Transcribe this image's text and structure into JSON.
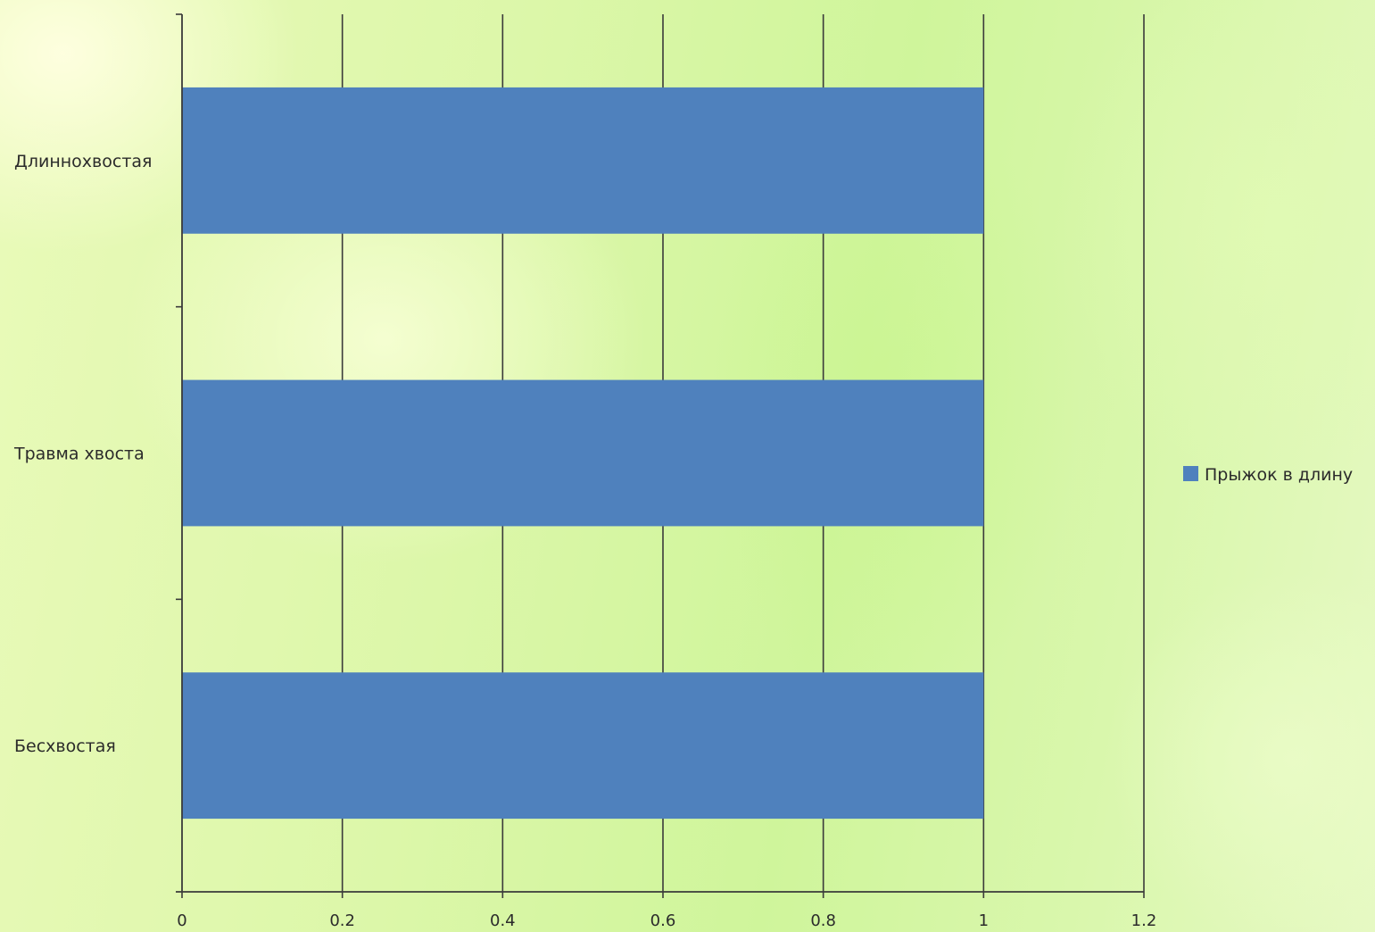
{
  "chart_data": {
    "type": "bar",
    "orientation": "horizontal",
    "categories": [
      "Длиннохвостая",
      "Травма хвоста",
      "Бесхвостая"
    ],
    "series": [
      {
        "name": "Прыжок в длину",
        "values": [
          1,
          1,
          1
        ],
        "color": "#4f81bd"
      }
    ],
    "xlim": [
      0,
      1.2
    ],
    "x_ticks": [
      "0",
      "0.2",
      "0.4",
      "0.6",
      "0.8",
      "1",
      "1.2"
    ],
    "grid": true,
    "legend_position": "right",
    "title": "",
    "xlabel": "",
    "ylabel": ""
  }
}
